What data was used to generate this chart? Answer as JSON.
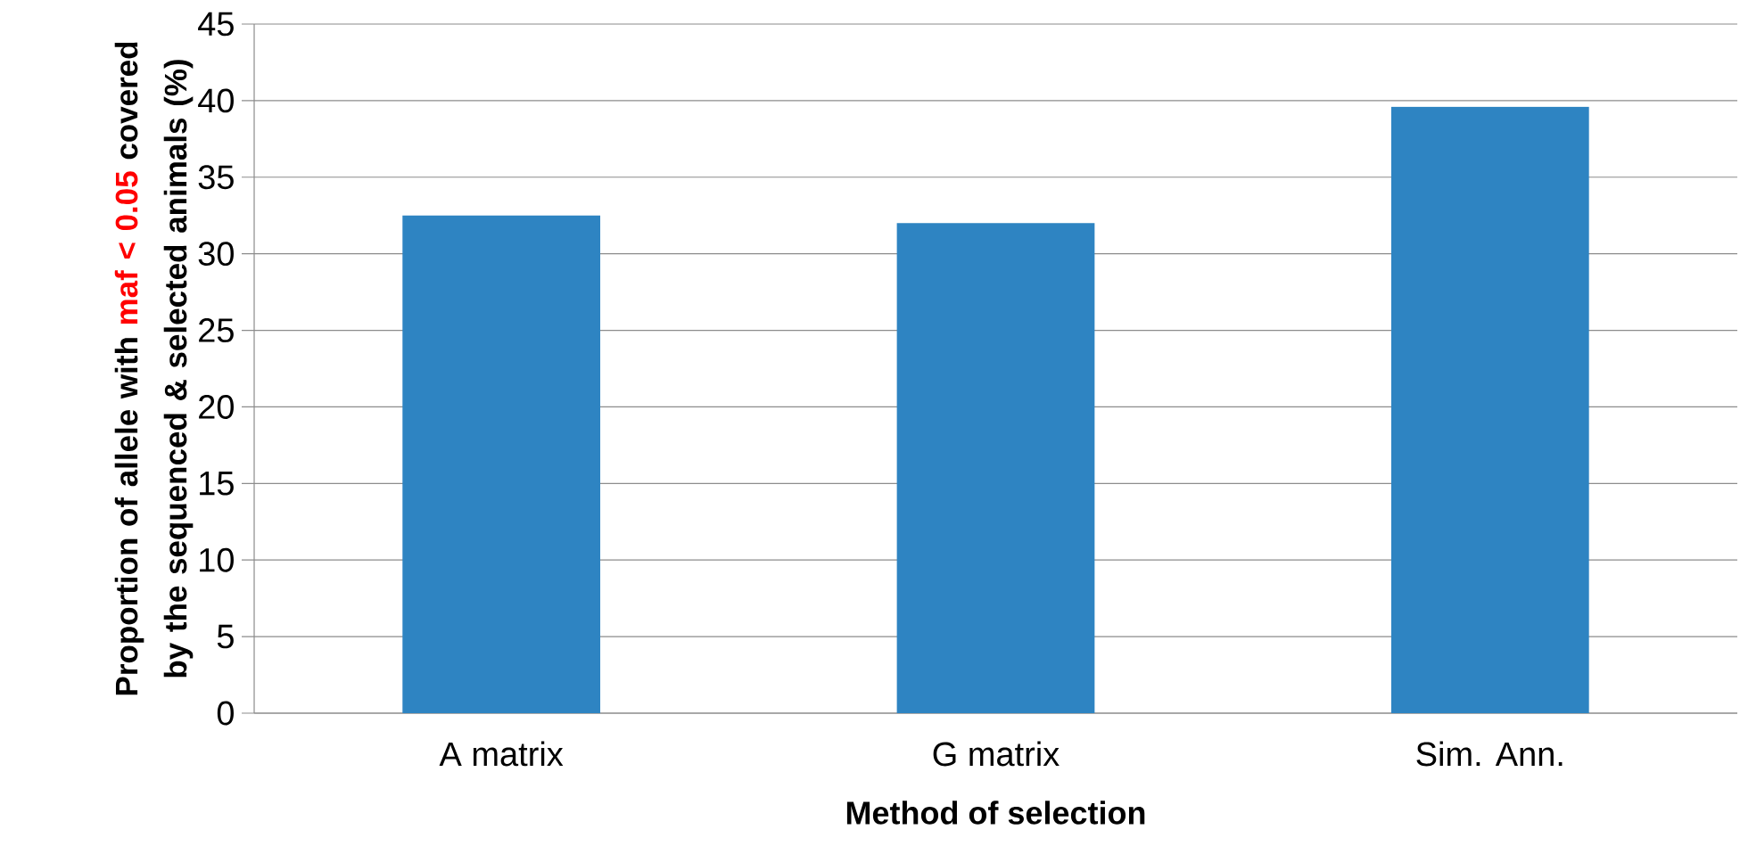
{
  "chart_data": {
    "type": "bar",
    "xlabel": "Method of selection",
    "ylabel": "Proportion of allele with *maf < 0.05* covered by the sequenced & selected animals (%)",
    "categories": [
      "A matrix",
      "G matrix",
      "Sim. Ann."
    ],
    "values": [
      32.5,
      32.0,
      39.6
    ],
    "color": "#2e84c2",
    "ylim": [
      0,
      45
    ],
    "yticks": [
      0,
      5,
      10,
      15,
      20,
      25,
      30,
      35,
      40,
      45
    ],
    "grid": "y"
  }
}
